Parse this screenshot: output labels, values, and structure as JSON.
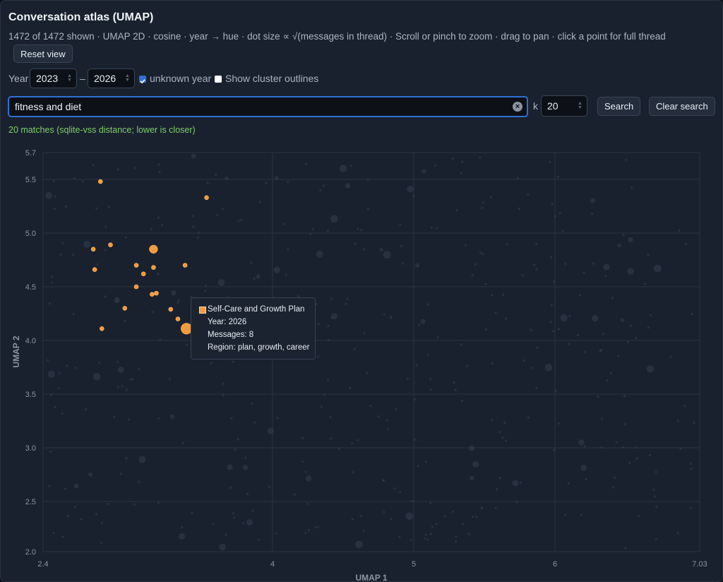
{
  "header": {
    "title": "Conversation atlas (UMAP)",
    "subtitle": "1472 of 1472 shown · UMAP 2D · cosine · year → hue · dot size ∝ √(messages in thread) · Scroll or pinch to zoom · drag to pan · click a point for full thread",
    "reset_label": "Reset view"
  },
  "filters": {
    "year_label": "Year",
    "year_from": "2023",
    "dash": "–",
    "year_to": "2026",
    "unknown_year_label": "unknown year",
    "unknown_year_checked": true,
    "outlines_label": "Show cluster outlines",
    "outlines_checked": false
  },
  "search": {
    "query": "fitness and diet",
    "k_label": "k",
    "k_value": "20",
    "search_label": "Search",
    "clear_label": "Clear search",
    "status": "20 matches (sqlite-vss distance; lower is closer)"
  },
  "tooltip": {
    "title": "Self-Care and Growth Plan",
    "year": "Year: 2026",
    "messages": "Messages: 8",
    "region": "Region: plan, growth, career"
  },
  "colors": {
    "match": "#f39a3d",
    "background_point": "#3a4556",
    "grid": "#2a3340",
    "accent": "#2f6fd6"
  },
  "chart_data": {
    "type": "scatter",
    "xlabel": "UMAP 1",
    "ylabel": "UMAP 2",
    "xlim": [
      2.4,
      7.03
    ],
    "ylim": [
      2.0,
      5.7
    ],
    "x_ticks": [
      2.4,
      4,
      5,
      6,
      7.03
    ],
    "y_ticks": [
      2.0,
      2.5,
      3.0,
      3.5,
      4.0,
      4.5,
      5.0,
      5.5,
      5.7
    ],
    "grid": true,
    "highlighted_points": [
      {
        "x": 2.8,
        "y": 5.48,
        "size": 1
      },
      {
        "x": 3.54,
        "y": 5.33,
        "size": 1
      },
      {
        "x": 2.87,
        "y": 4.89,
        "size": 1
      },
      {
        "x": 2.75,
        "y": 4.85,
        "size": 1
      },
      {
        "x": 3.17,
        "y": 4.85,
        "size": 4
      },
      {
        "x": 3.05,
        "y": 4.7,
        "size": 1
      },
      {
        "x": 3.17,
        "y": 4.68,
        "size": 1
      },
      {
        "x": 3.39,
        "y": 4.7,
        "size": 1
      },
      {
        "x": 2.76,
        "y": 4.66,
        "size": 1
      },
      {
        "x": 3.1,
        "y": 4.62,
        "size": 1
      },
      {
        "x": 3.05,
        "y": 4.5,
        "size": 1
      },
      {
        "x": 3.16,
        "y": 4.43,
        "size": 1
      },
      {
        "x": 3.19,
        "y": 4.44,
        "size": 1
      },
      {
        "x": 2.97,
        "y": 4.3,
        "size": 1
      },
      {
        "x": 3.29,
        "y": 4.29,
        "size": 1
      },
      {
        "x": 3.34,
        "y": 4.2,
        "size": 1
      },
      {
        "x": 2.81,
        "y": 4.11,
        "size": 1
      },
      {
        "x": 3.4,
        "y": 4.11,
        "size": 8
      }
    ]
  }
}
